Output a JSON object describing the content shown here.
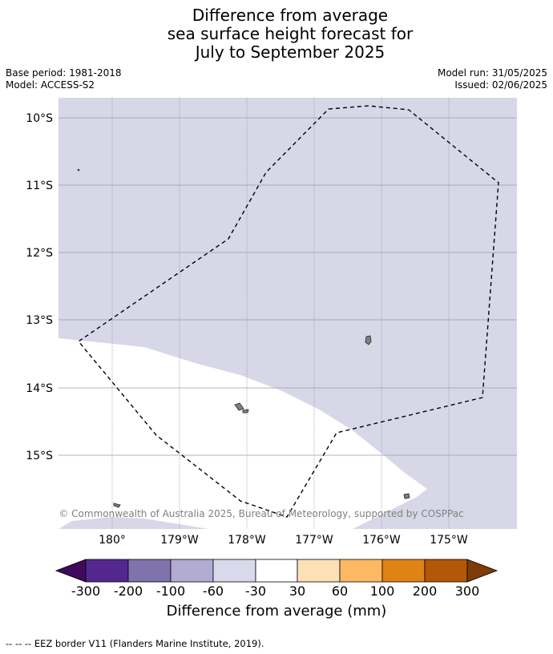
{
  "header": {
    "title_lines": [
      "Difference from average",
      "sea surface height forecast for",
      "July to September 2025"
    ],
    "base_period": "Base period: 1981-2018",
    "model": "Model: ACCESS-S2",
    "model_run": "Model run: 31/05/2025",
    "issued": "Issued: 02/06/2025"
  },
  "map": {
    "lat_labels": [
      "10°S",
      "11°S",
      "12°S",
      "13°S",
      "14°S",
      "15°S"
    ],
    "lon_labels": [
      "180°",
      "179°W",
      "178°W",
      "177°W",
      "176°W",
      "175°W"
    ],
    "attribution": "© Commonwealth of Australia 2025, Bureau of Meteorology, supported by COSPPac",
    "colors": {
      "ocean_band": "#d7d7e8",
      "white_band": "#ffffff",
      "land": "#808080",
      "grid": "#888899"
    }
  },
  "colorbar": {
    "title": "Difference from average (mm)",
    "tick_labels": [
      "-300",
      "-200",
      "-100",
      "-60",
      "-30",
      "30",
      "60",
      "100",
      "200",
      "300"
    ],
    "colors": [
      "#3f0a5e",
      "#54278f",
      "#8073ac",
      "#b2abd2",
      "#d8daeb",
      "#ffffff",
      "#fee0b6",
      "#fdb863",
      "#e08214",
      "#b35806",
      "#7f3b08"
    ]
  },
  "footer": {
    "legend": "--  --  -- EEZ border V11 (Flanders Marine Institute, 2019)."
  }
}
